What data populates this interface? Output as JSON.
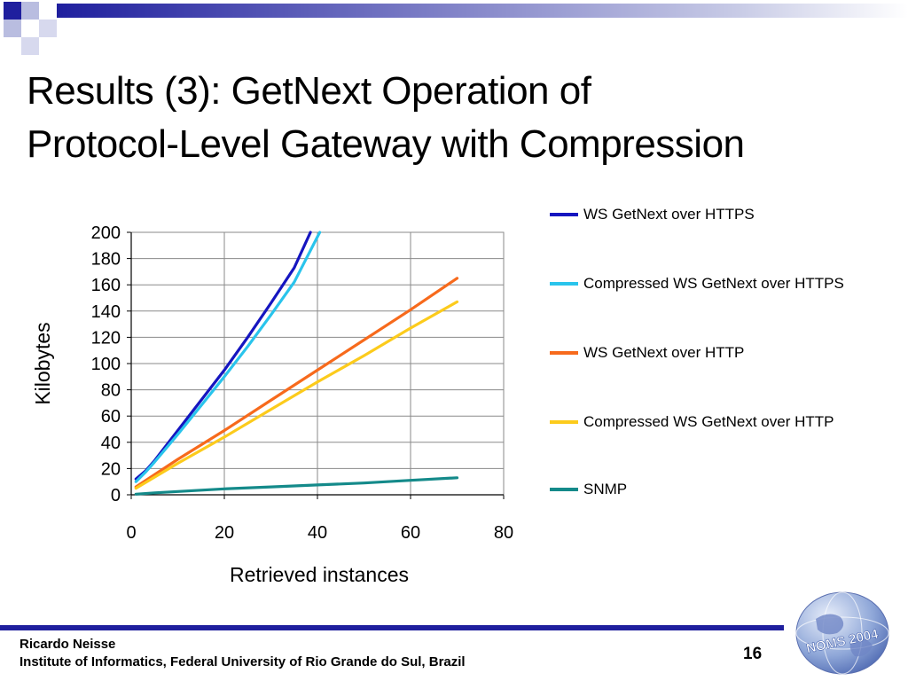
{
  "slide": {
    "title_line1": "Results (3): GetNext Operation  of",
    "title_line2": "Protocol-Level Gateway with Compression",
    "footer_author": "Ricardo Neisse",
    "footer_institution": "Institute of Informatics, Federal University of Rio Grande do Sul, Brazil",
    "page_number": "16",
    "logo_text": "NOMS 2004",
    "accent_color": "#1f1f9e"
  },
  "chart_data": {
    "type": "line",
    "title": "",
    "xlabel": "Retrieved instances",
    "ylabel": "Kilobytes",
    "xlim": [
      0,
      80
    ],
    "ylim": [
      0,
      200
    ],
    "xticks": [
      0,
      20,
      40,
      60,
      80
    ],
    "yticks": [
      0,
      20,
      40,
      60,
      80,
      100,
      120,
      140,
      160,
      180,
      200
    ],
    "grid": "vertical and horizontal",
    "legend_position": "right",
    "series": [
      {
        "name": "WS GetNext over HTTPS",
        "color": "#1515c0",
        "x": [
          1,
          3,
          5,
          10,
          15,
          20,
          25,
          30,
          35,
          38.5
        ],
        "y": [
          12,
          18,
          26,
          49,
          72,
          95,
          120,
          146,
          173,
          200
        ]
      },
      {
        "name": "Compressed WS GetNext over HTTPS",
        "color": "#29c4ec",
        "x": [
          1,
          3,
          5,
          10,
          15,
          20,
          25,
          30,
          35,
          40.5
        ],
        "y": [
          10,
          17,
          25,
          46,
          68,
          90,
          113,
          137,
          162,
          200
        ]
      },
      {
        "name": "WS GetNext over HTTP",
        "color": "#f76a1c",
        "x": [
          1,
          10,
          20,
          30,
          40,
          50,
          60,
          70
        ],
        "y": [
          6,
          27,
          49,
          72,
          95,
          118,
          141,
          165
        ]
      },
      {
        "name": "Compressed WS GetNext over HTTP",
        "color": "#fccb1c",
        "x": [
          1,
          10,
          20,
          30,
          40,
          50,
          60,
          70
        ],
        "y": [
          5,
          24,
          44,
          65,
          86,
          106,
          127,
          147
        ]
      },
      {
        "name": "SNMP",
        "color": "#148a8a",
        "x": [
          1,
          5,
          10,
          15,
          20,
          30,
          40,
          50,
          60,
          70
        ],
        "y": [
          0.5,
          1.5,
          2.5,
          3.5,
          4.5,
          6,
          7.5,
          9,
          11,
          13
        ]
      }
    ]
  }
}
